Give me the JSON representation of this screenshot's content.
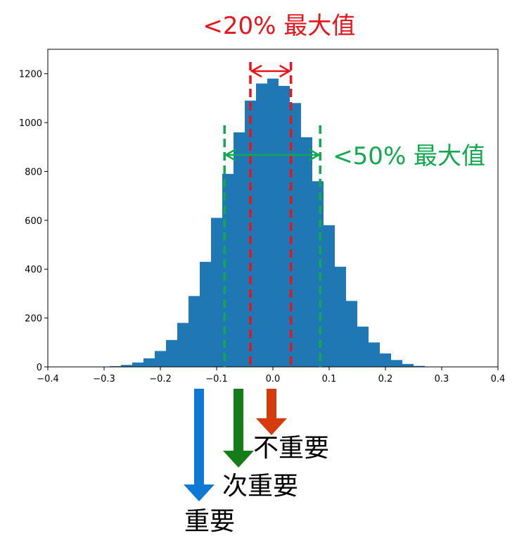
{
  "chart_data": {
    "type": "bar",
    "subtype": "histogram",
    "distribution": "approximately normal",
    "x": [
      -0.28,
      -0.26,
      -0.24,
      -0.22,
      -0.2,
      -0.18,
      -0.16,
      -0.14,
      -0.12,
      -0.1,
      -0.08,
      -0.06,
      -0.04,
      -0.02,
      0.0,
      0.02,
      0.04,
      0.06,
      0.08,
      0.1,
      0.12,
      0.14,
      0.16,
      0.18,
      0.2,
      0.22,
      0.24,
      0.26
    ],
    "values": [
      3,
      8,
      18,
      35,
      65,
      110,
      180,
      290,
      430,
      610,
      790,
      960,
      1090,
      1160,
      1180,
      1150,
      1080,
      940,
      760,
      580,
      410,
      270,
      165,
      100,
      55,
      28,
      12,
      4
    ],
    "xlim": [
      -0.4,
      0.4
    ],
    "ylim": [
      0,
      1300
    ],
    "xticks": [
      "−0.4",
      "−0.3",
      "−0.2",
      "−0.1",
      "0.0",
      "0.1",
      "0.2",
      "0.3",
      "0.4"
    ],
    "xtick_values": [
      -0.4,
      -0.3,
      -0.2,
      -0.1,
      0.0,
      0.1,
      0.2,
      0.3,
      0.4
    ],
    "yticks": [
      "0",
      "200",
      "400",
      "600",
      "800",
      "1000",
      "1200"
    ],
    "ytick_values": [
      0,
      200,
      400,
      600,
      800,
      1000,
      1200
    ],
    "grid": false,
    "bar_color": "#1f77b4",
    "title": "",
    "xlabel": "",
    "ylabel": "",
    "annotations": [
      {
        "text": "<20% 最大值",
        "color": "#e8141b",
        "x_range": [
          -0.04,
          0.032
        ],
        "y": 1220
      },
      {
        "text": "<50% 最大值",
        "color": "#12a84f",
        "x_range": [
          -0.086,
          0.084
        ],
        "y": 870
      }
    ],
    "importance_labels": [
      {
        "text": "不重要",
        "arrow_color": "#d63b0c",
        "x": 0.0
      },
      {
        "text": "次重要",
        "arrow_color": "#157d17",
        "x": -0.06
      },
      {
        "text": "重要",
        "arrow_color": "#0f78d4",
        "x": -0.13
      }
    ]
  }
}
